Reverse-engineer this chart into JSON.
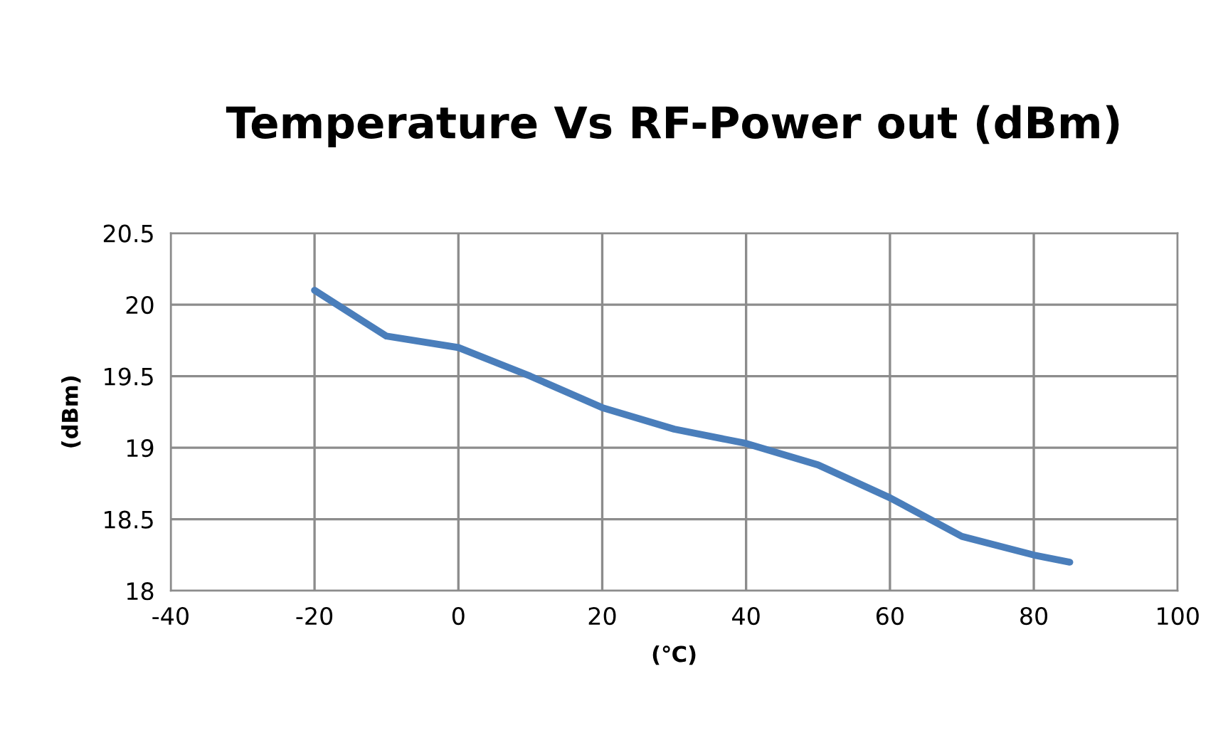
{
  "chart_data": {
    "type": "line",
    "title": "Temperature Vs RF-Power out (dBm)",
    "xlabel": "(℃)",
    "ylabel": "(dBm)",
    "x": [
      -20,
      -10,
      0,
      10,
      20,
      30,
      40,
      50,
      60,
      70,
      80,
      85
    ],
    "series": [
      {
        "color": "#4a7ebb",
        "values": [
          20.1,
          19.78,
          19.7,
          19.5,
          19.28,
          19.13,
          19.03,
          18.88,
          18.65,
          18.38,
          18.25,
          18.2
        ]
      }
    ],
    "xlim": [
      -40,
      100
    ],
    "xticks": [
      -40,
      -20,
      0,
      20,
      40,
      60,
      80,
      100
    ],
    "ylim": [
      18,
      20.5
    ],
    "yticks": [
      18,
      18.5,
      19,
      19.5,
      20,
      20.5
    ],
    "grid": true,
    "marker": "none",
    "line_style": "solid"
  }
}
